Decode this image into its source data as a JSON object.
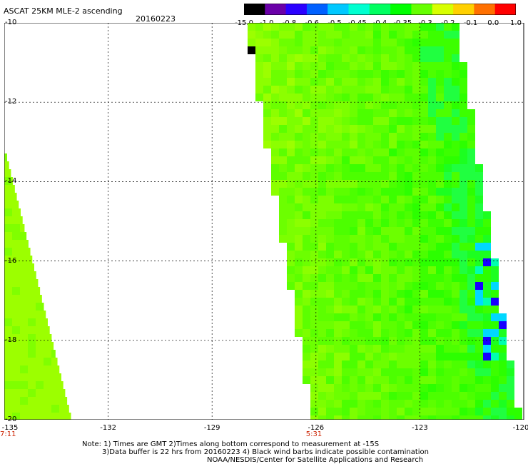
{
  "title": "ASCAT 25KM MLE-2 ascending",
  "date": "20160223",
  "colorbar": {
    "labels": [
      "-15.0",
      "-1.0",
      "-0.8",
      "-0.6",
      "-0.5",
      "-0.45",
      "-0.4",
      "-0.35",
      "-0.3",
      "-0.2",
      "-0.1",
      "0.0",
      "1.0"
    ],
    "colors": [
      "#000000",
      "#6a00a8",
      "#2b00ff",
      "#0060ff",
      "#00c8ff",
      "#00ffd0",
      "#00ff60",
      "#00ff00",
      "#66ff00",
      "#d8ff00",
      "#ffd000",
      "#ff7000",
      "#ff0000"
    ]
  },
  "map": {
    "lon_range": [
      -135,
      -120
    ],
    "lat_range": [
      -20,
      -10
    ],
    "x_ticks": [
      "-135",
      "-132",
      "-129",
      "-126",
      "-123",
      "-120"
    ],
    "y_ticks": [
      "-10",
      "-12",
      "-14",
      "-16",
      "-18",
      "-20"
    ],
    "pass_times": [
      {
        "lon": -135,
        "label": "7:11"
      },
      {
        "lon": -126,
        "label": "5:31"
      }
    ]
  },
  "notes": {
    "line1": "Note: 1) Times are GMT 2)Times along bottom correspond to measurement at -15S",
    "line2": "3)Data buffer is 22 hrs from 20160223 4) Black wind barbs indicate possible contamination",
    "line3": "NOAA/NESDIS/Center for Satellite Applications and Research"
  }
}
